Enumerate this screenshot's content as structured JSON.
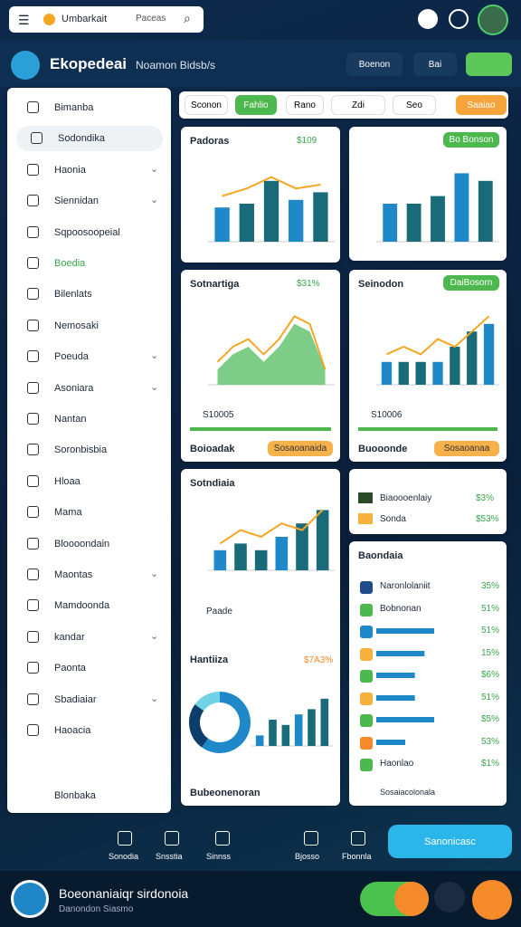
{
  "topbar": {
    "search_title": "Umbarkait",
    "search_hint": "Paceas"
  },
  "header": {
    "title": "Ekopedeai",
    "subtitle": "Noamon Bidsb/s",
    "buttons": [
      "Boenon",
      "Bai"
    ]
  },
  "sidebar": {
    "items": [
      "Bimanba",
      "Sodondika",
      "Haonia",
      "Siennidan",
      "Sqpoosoopeial",
      "Boedia",
      "Bilenlats",
      "Nemosaki",
      "Poeuda",
      "Asoniara",
      "Nantan",
      "Soronbisbia",
      "Hloaa",
      "Mama",
      "Bloooondain",
      "Maontas",
      "Mamdoonda",
      "kandar",
      "Paonta",
      "Sbadiaiar",
      "Haoacia"
    ],
    "footer": "Blonbaka"
  },
  "toolbar": [
    "Sconon",
    "Fahlio",
    "Rano",
    "Zdi",
    "Seo",
    "Saaiao"
  ],
  "cards": [
    {
      "title": "Padoras",
      "badge": "$109",
      "chart": {
        "ylim": [
          0,
          10
        ],
        "bars": [
          4.5,
          5,
          8,
          5.5,
          6.5
        ],
        "line": [
          6,
          7,
          8.5,
          7,
          7.5
        ]
      }
    },
    {
      "button": "Bo Bonson",
      "chart": {
        "ylim": [
          0,
          10
        ],
        "bars": [
          5,
          5,
          6,
          9,
          8
        ]
      }
    },
    {
      "title": "Sotnartiga",
      "badge": "$31%",
      "chart": {
        "ylim": [
          0,
          10
        ],
        "area": [
          2,
          4,
          5,
          3,
          5,
          8,
          7,
          2
        ],
        "line": [
          3,
          5,
          6,
          4,
          6,
          9,
          8,
          2
        ]
      },
      "stat": "S10005",
      "footer": "Boioadak",
      "footer_button": "Sosaoanaida"
    },
    {
      "title": "Seinodon",
      "button": "DaiBosorn",
      "chart": {
        "ylim": [
          0,
          10
        ],
        "bars": [
          3,
          3,
          3,
          3,
          5,
          7,
          8
        ],
        "line": [
          4,
          5,
          4,
          6,
          5,
          7,
          9
        ]
      },
      "stat": "S10006",
      "footer": "Buooonde",
      "footer_button": "Sosaoanaa"
    },
    {
      "title": "Sotndiaia",
      "chart": {
        "ylim": [
          0,
          10
        ],
        "bars": [
          3,
          4,
          3,
          5,
          7,
          9
        ],
        "line": [
          4,
          6,
          5,
          7,
          6,
          9
        ]
      },
      "legend": "Paade",
      "section": "Hantiiza",
      "badge": "$7A3%",
      "donut": [
        60,
        25,
        15
      ],
      "bars2": [
        2,
        5,
        4,
        6,
        7,
        9
      ],
      "footer": "Bubeonenoran"
    }
  ],
  "summary": {
    "rows": [
      {
        "label": "Biaoooenlaiy",
        "pct": "$3%"
      },
      {
        "label": "Sonda",
        "pct": "$53%"
      }
    ]
  },
  "list": {
    "title": "Baondaia",
    "rows": [
      {
        "label": "Naronlolaniit",
        "pct": "35%"
      },
      {
        "label": "Bobnonan",
        "pct": "51%"
      },
      {
        "bar": 6,
        "pct": "51%"
      },
      {
        "bar": 5,
        "pct": "15%"
      },
      {
        "bar": 4,
        "pct": "$6%"
      },
      {
        "bar": 4,
        "pct": "51%"
      },
      {
        "bar": 6,
        "pct": "$5%"
      },
      {
        "bar": 3,
        "pct": "53%"
      },
      {
        "label": "Haonlao",
        "pct": "$1%"
      }
    ],
    "footer": "Sosaiacolonala"
  },
  "bottom_nav": {
    "items": [
      "Sonodia",
      "Snsstia",
      "Sinnss",
      "Bjosso",
      "Fbonnla"
    ],
    "button": "Sanonicasc"
  },
  "footer": {
    "title": "Boeonaniaiqr sirdonoia",
    "subtitle": "Danondon Siasmo"
  }
}
